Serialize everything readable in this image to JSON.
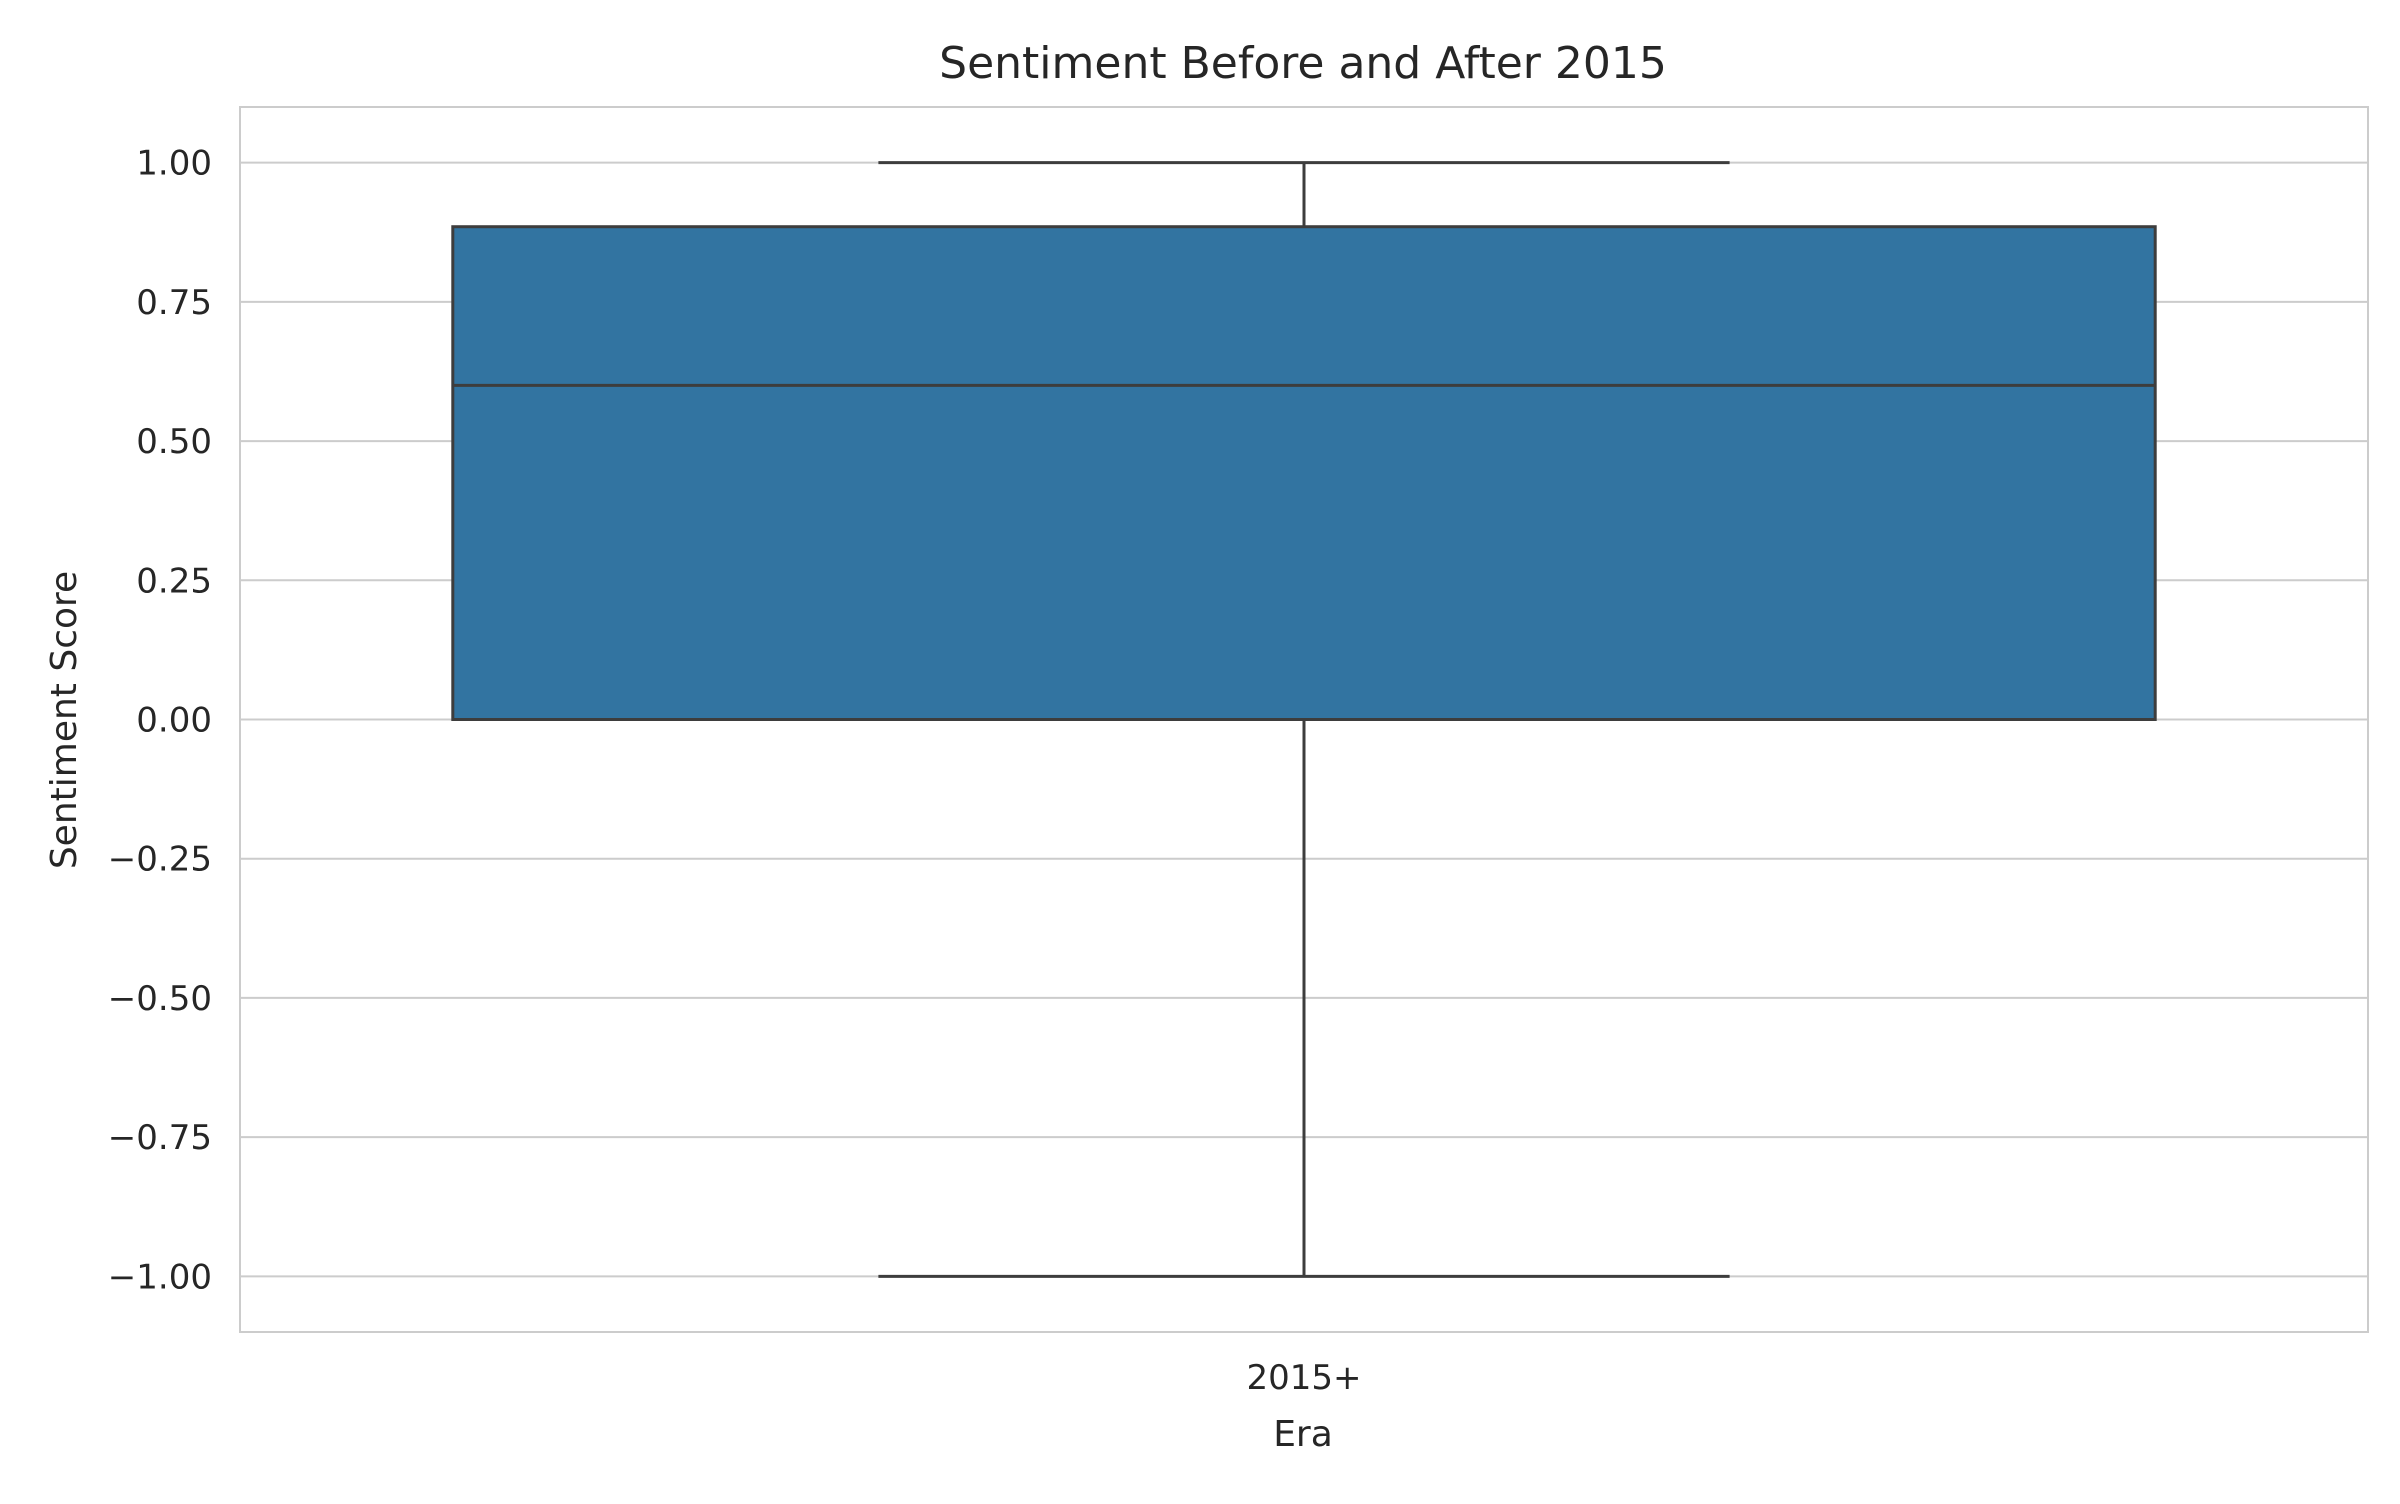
{
  "chart_data": {
    "type": "box",
    "title": "Sentiment Before and After 2015",
    "xlabel": "Era",
    "ylabel": "Sentiment Score",
    "ylim": [
      -1.1,
      1.1
    ],
    "yticks": [
      1.0,
      0.75,
      0.5,
      0.25,
      0.0,
      -0.25,
      -0.5,
      -0.75,
      -1.0
    ],
    "ytick_labels": [
      "1.00",
      "0.75",
      "0.50",
      "0.25",
      "0.00",
      "−0.25",
      "−0.50",
      "−0.75",
      "−1.00"
    ],
    "grid": true,
    "categories": [
      "2015+"
    ],
    "boxes": [
      {
        "category": "2015+",
        "whisker_low": -1.0,
        "q1": 0.0,
        "median": 0.6,
        "q3": 0.885,
        "whisker_high": 1.0
      }
    ],
    "colors": {
      "box_fill": "#3274a1",
      "line": "#3d3d3d",
      "grid": "#cccccc",
      "frame": "#cccccc"
    }
  }
}
